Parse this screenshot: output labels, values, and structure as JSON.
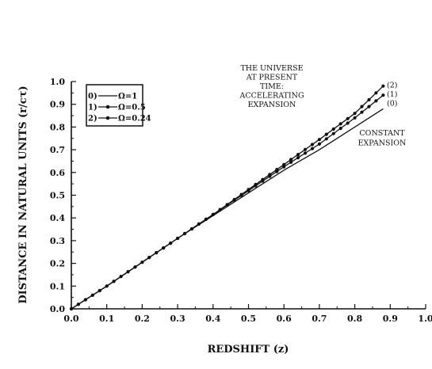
{
  "chart_data": {
    "type": "line",
    "xlabel": "REDSHIFT (z)",
    "ylabel": "DISTANCE IN NATURAL UNITS (r/cτ)",
    "xlim": [
      0.0,
      1.0
    ],
    "ylim": [
      0.0,
      1.0
    ],
    "x_ticks": [
      "0.0",
      "0.1",
      "0.2",
      "0.3",
      "0.4",
      "0.5",
      "0.6",
      "0.7",
      "0.8",
      "0.9",
      "1.0"
    ],
    "y_ticks": [
      "0.0",
      "0.1",
      "0.2",
      "0.3",
      "0.4",
      "0.5",
      "0.6",
      "0.7",
      "0.8",
      "0.9",
      "1.0"
    ],
    "grid": false,
    "legend_position": "top-left",
    "series": [
      {
        "name": "0)",
        "label": "Ω=1",
        "marker": "none",
        "x": [
          0.0,
          0.1,
          0.2,
          0.3,
          0.4,
          0.5,
          0.6,
          0.7,
          0.8,
          0.88
        ],
        "y": [
          0.0,
          0.1,
          0.205,
          0.31,
          0.41,
          0.51,
          0.61,
          0.7,
          0.8,
          0.88
        ]
      },
      {
        "name": "1)",
        "label": "Ω=0.5",
        "marker": "circle",
        "x": [
          0.0,
          0.1,
          0.2,
          0.3,
          0.4,
          0.5,
          0.6,
          0.7,
          0.8,
          0.88
        ],
        "y": [
          0.0,
          0.1,
          0.205,
          0.31,
          0.415,
          0.52,
          0.625,
          0.725,
          0.84,
          0.94
        ]
      },
      {
        "name": "2)",
        "label": "Ω=0.24",
        "marker": "circle",
        "x": [
          0.0,
          0.1,
          0.2,
          0.3,
          0.4,
          0.5,
          0.6,
          0.7,
          0.8,
          0.88
        ],
        "y": [
          0.0,
          0.1,
          0.205,
          0.31,
          0.415,
          0.525,
          0.635,
          0.745,
          0.86,
          0.98
        ]
      }
    ],
    "end_labels": [
      "(2)",
      "(1)",
      "(0)"
    ],
    "annotations": [
      {
        "id": "accelerating",
        "lines": [
          "THE UNIVERSE",
          "AT PRESENT",
          "TIME:",
          "ACCELERATING",
          "EXPANSION"
        ]
      },
      {
        "id": "constant",
        "lines": [
          "CONSTANT",
          "EXPANSION"
        ]
      }
    ]
  }
}
